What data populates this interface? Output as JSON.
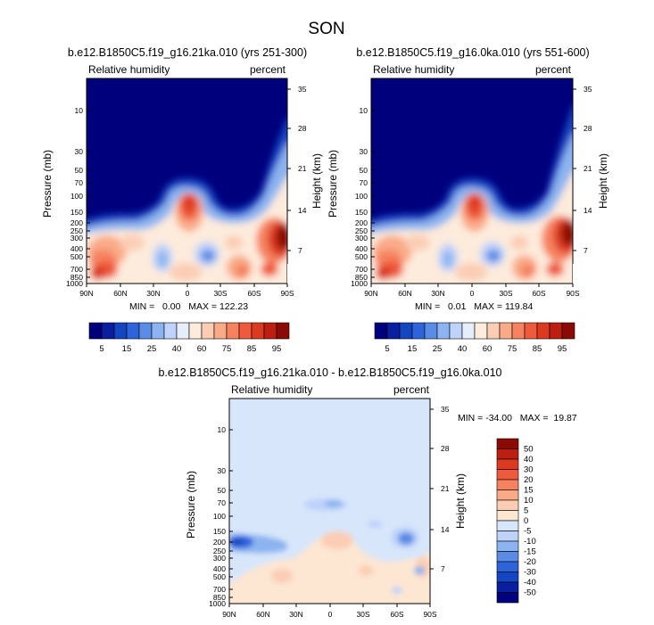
{
  "title": "SON",
  "colors": {
    "background": "#ffffff",
    "abs_scale": [
      "#00007d",
      "#0a1ea0",
      "#1446c3",
      "#2d64dc",
      "#5a8ce6",
      "#8cb4f0",
      "#bed2fa",
      "#e6eefc",
      "#fdebdc",
      "#fbcdb4",
      "#f9aa87",
      "#f68260",
      "#ef5a3c",
      "#dc3a20",
      "#bd1e12",
      "#8c0a05"
    ],
    "diff_scale": [
      "#00007d",
      "#0a1ea0",
      "#1446c3",
      "#2d64dc",
      "#5a8ce6",
      "#8cb4f0",
      "#bed2fa",
      "#d7e6fa",
      "#fde6d2",
      "#fbcdb4",
      "#f9aa87",
      "#f68260",
      "#ef5a3c",
      "#dc3a20",
      "#bd1e12",
      "#8c0a05"
    ]
  },
  "chart_data": [
    {
      "type": "heatmap",
      "title": "b.e12.B1850C5.f19_g16.21ka.010 (yrs 251-300)",
      "subtitle_left": "Relative humidity",
      "subtitle_right": "percent",
      "ylabel": "Pressure (mb)",
      "ylabel_right": "Height (km)",
      "x_ticks": [
        "90N",
        "60N",
        "30N",
        "0",
        "30S",
        "60S",
        "90S"
      ],
      "y_ticks": [
        "10",
        "30",
        "50",
        "70",
        "100",
        "150",
        "200",
        "250",
        "300",
        "400",
        "500",
        "700",
        "850",
        "1000"
      ],
      "y_ticks_right": [
        "35",
        "28",
        "21",
        "14",
        "7"
      ],
      "stats": "MIN =   0.00   MAX = 122.23",
      "colorbar_labels": [
        "5",
        "15",
        "25",
        "40",
        "60",
        "75",
        "85",
        "95"
      ]
    },
    {
      "type": "heatmap",
      "title": "b.e12.B1850C5.f19_g16.0ka.010 (yrs 551-600)",
      "subtitle_left": "Relative humidity",
      "subtitle_right": "percent",
      "ylabel": "Pressure (mb)",
      "ylabel_right": "Height (km)",
      "x_ticks": [
        "90N",
        "60N",
        "30N",
        "0",
        "30S",
        "60S",
        "90S"
      ],
      "y_ticks": [
        "10",
        "30",
        "50",
        "70",
        "100",
        "150",
        "200",
        "250",
        "300",
        "400",
        "500",
        "700",
        "850",
        "1000"
      ],
      "y_ticks_right": [
        "35",
        "28",
        "21",
        "14",
        "7"
      ],
      "stats": "MIN =   0.01   MAX = 119.84",
      "colorbar_labels": [
        "5",
        "15",
        "25",
        "40",
        "60",
        "75",
        "85",
        "95"
      ]
    },
    {
      "type": "heatmap",
      "title": "b.e12.B1850C5.f19_g16.21ka.010 - b.e12.B1850C5.f19_g16.0ka.010",
      "subtitle_left": "Relative humidity",
      "subtitle_right": "percent",
      "ylabel": "Pressure (mb)",
      "ylabel_right": "Height (km)",
      "x_ticks": [
        "90N",
        "60N",
        "30N",
        "0",
        "30S",
        "60S",
        "90S"
      ],
      "y_ticks": [
        "10",
        "30",
        "50",
        "70",
        "100",
        "150",
        "200",
        "250",
        "300",
        "400",
        "500",
        "700",
        "850",
        "1000"
      ],
      "y_ticks_right": [
        "35",
        "28",
        "21",
        "14",
        "7"
      ],
      "stats": "MIN = -34.00   MAX =  19.87",
      "colorbar_labels": [
        "50",
        "40",
        "30",
        "20",
        "15",
        "10",
        "5",
        "0",
        "-5",
        "-10",
        "-15",
        "-20",
        "-30",
        "-40",
        "-50"
      ]
    }
  ]
}
